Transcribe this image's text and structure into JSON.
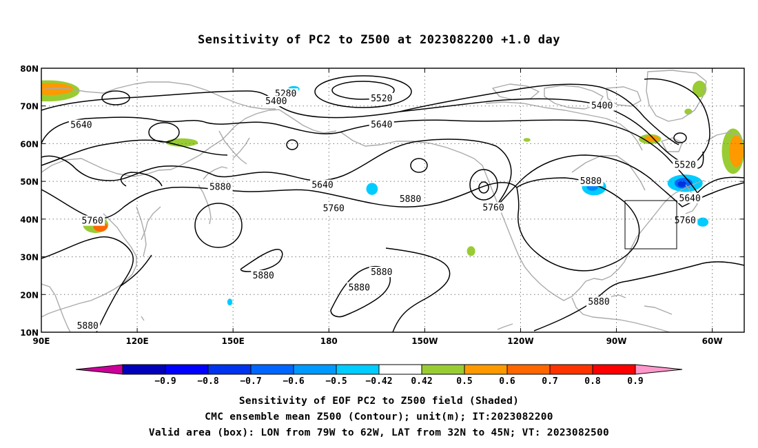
{
  "title": "Sensitivity of PC2 to Z500 at 2023082200 +1.0 day",
  "map": {
    "lon_range": [
      90,
      310
    ],
    "lat_range": [
      10,
      80
    ],
    "lat_ticks": [
      {
        "value": 80,
        "label": "80N"
      },
      {
        "value": 70,
        "label": "70N"
      },
      {
        "value": 60,
        "label": "60N"
      },
      {
        "value": 50,
        "label": "50N"
      },
      {
        "value": 40,
        "label": "40N"
      },
      {
        "value": 30,
        "label": "30N"
      },
      {
        "value": 20,
        "label": "20N"
      },
      {
        "value": 10,
        "label": "10N"
      }
    ],
    "lon_ticks": [
      {
        "value": 90,
        "label": "90E"
      },
      {
        "value": 120,
        "label": "120E"
      },
      {
        "value": 150,
        "label": "150E"
      },
      {
        "value": 180,
        "label": "180"
      },
      {
        "value": 210,
        "label": "150W"
      },
      {
        "value": 240,
        "label": "120W"
      },
      {
        "value": 270,
        "label": "90W"
      },
      {
        "value": 300,
        "label": "60W"
      }
    ],
    "valid_box": {
      "lon_min": 281,
      "lon_max": 298,
      "lat_min": 32,
      "lat_max": 45
    },
    "contour_labels": [
      {
        "text": "5280",
        "lon": 166.5,
        "lat": 73.2
      },
      {
        "text": "5400",
        "lon": 163.5,
        "lat": 71.2
      },
      {
        "text": "5520",
        "lon": 196.5,
        "lat": 72.0
      },
      {
        "text": "5640",
        "lon": 102.5,
        "lat": 64.9
      },
      {
        "text": "5640",
        "lon": 196.5,
        "lat": 65.0
      },
      {
        "text": "5400",
        "lon": 265.5,
        "lat": 70.0
      },
      {
        "text": "5520",
        "lon": 291.5,
        "lat": 54.3
      },
      {
        "text": "5640",
        "lon": 178.0,
        "lat": 49.0
      },
      {
        "text": "5640",
        "lon": 293.0,
        "lat": 45.5
      },
      {
        "text": "5880",
        "lon": 146.0,
        "lat": 48.5
      },
      {
        "text": "5880",
        "lon": 262.0,
        "lat": 50.0
      },
      {
        "text": "5760",
        "lon": 181.5,
        "lat": 42.8
      },
      {
        "text": "5880",
        "lon": 205.5,
        "lat": 45.3
      },
      {
        "text": "5760",
        "lon": 231.5,
        "lat": 43.0
      },
      {
        "text": "5760",
        "lon": 106.0,
        "lat": 39.5
      },
      {
        "text": "5760",
        "lon": 291.5,
        "lat": 39.6
      },
      {
        "text": "5880",
        "lon": 159.5,
        "lat": 25.0
      },
      {
        "text": "5880",
        "lon": 196.5,
        "lat": 25.9
      },
      {
        "text": "5880",
        "lon": 189.5,
        "lat": 21.8
      },
      {
        "text": "5880",
        "lon": 264.5,
        "lat": 18.0
      },
      {
        "text": "5880",
        "lon": 104.5,
        "lat": 11.6
      }
    ],
    "shaded_regions": [
      {
        "lon": 92,
        "lat": 74,
        "rx": 10,
        "ry": 2.8,
        "color": "#99cc33"
      },
      {
        "lon": 93,
        "lat": 74.5,
        "rx": 7,
        "ry": 1.6,
        "color": "#ff9900"
      },
      {
        "lon": 107,
        "lat": 38.5,
        "rx": 4,
        "ry": 2.2,
        "color": "#99cc33"
      },
      {
        "lon": 108.5,
        "lat": 38,
        "rx": 2.2,
        "ry": 1.3,
        "color": "#ff6600"
      },
      {
        "lon": 134,
        "lat": 60.3,
        "rx": 5,
        "ry": 1.1,
        "color": "#99cc33"
      },
      {
        "lon": 169,
        "lat": 74.5,
        "rx": 1.8,
        "ry": 0.8,
        "color": "#00ccff"
      },
      {
        "lon": 193.5,
        "lat": 48,
        "rx": 1.8,
        "ry": 1.6,
        "color": "#00ccff"
      },
      {
        "lon": 280.5,
        "lat": 61.2,
        "rx": 3.5,
        "ry": 1.3,
        "color": "#99cc33"
      },
      {
        "lon": 281,
        "lat": 61.3,
        "rx": 2.3,
        "ry": 0.8,
        "color": "#ff9900"
      },
      {
        "lon": 296,
        "lat": 74.5,
        "rx": 2.2,
        "ry": 2.2,
        "color": "#99cc33"
      },
      {
        "lon": 306.5,
        "lat": 58,
        "rx": 3.5,
        "ry": 6,
        "color": "#99cc33"
      },
      {
        "lon": 307.5,
        "lat": 58,
        "rx": 2.2,
        "ry": 4.2,
        "color": "#ff9900"
      },
      {
        "lon": 263,
        "lat": 48.5,
        "rx": 3.8,
        "ry": 2.2,
        "color": "#00ccff"
      },
      {
        "lon": 262.5,
        "lat": 48.6,
        "rx": 1.8,
        "ry": 1.1,
        "color": "#0088ff"
      },
      {
        "lon": 291.5,
        "lat": 49.5,
        "rx": 5.5,
        "ry": 2.3,
        "color": "#00ccff"
      },
      {
        "lon": 291,
        "lat": 49.5,
        "rx": 2.8,
        "ry": 1.4,
        "color": "#0066ff"
      },
      {
        "lon": 290.5,
        "lat": 49.3,
        "rx": 1.3,
        "ry": 0.8,
        "color": "#0033dd"
      },
      {
        "lon": 297,
        "lat": 39.2,
        "rx": 1.8,
        "ry": 1.2,
        "color": "#00ccff"
      },
      {
        "lon": 224.5,
        "lat": 31.5,
        "rx": 1.3,
        "ry": 1.3,
        "color": "#99cc33"
      },
      {
        "lon": 149,
        "lat": 18,
        "rx": 0.8,
        "ry": 0.9,
        "color": "#00ccff"
      },
      {
        "lon": 242,
        "lat": 61,
        "rx": 1.1,
        "ry": 0.5,
        "color": "#99cc33"
      },
      {
        "lon": 292.5,
        "lat": 68.5,
        "rx": 1.2,
        "ry": 0.8,
        "color": "#99cc33"
      }
    ]
  },
  "colorbar": {
    "labels": [
      "−0.9",
      "−0.8",
      "−0.7",
      "−0.6",
      "−0.5",
      "−0.42",
      "0.42",
      "0.5",
      "0.6",
      "0.7",
      "0.8",
      "0.9"
    ],
    "colors": [
      "#cc0099",
      "#0000bb",
      "#0000ff",
      "#0033ee",
      "#0066ff",
      "#0099ff",
      "#00ccff",
      "#ffffff",
      "#99cc33",
      "#ff9900",
      "#ff6600",
      "#ff3300",
      "#ff0000",
      "#ff99cc"
    ]
  },
  "captions": [
    "Sensitivity of EOF PC2 to Z500 field (Shaded)",
    "CMC ensemble mean Z500 (Contour); unit(m); IT:2023082200",
    "Valid area (box): LON from 79W to 62W, LAT from 32N to 45N; VT: 2023082500"
  ]
}
